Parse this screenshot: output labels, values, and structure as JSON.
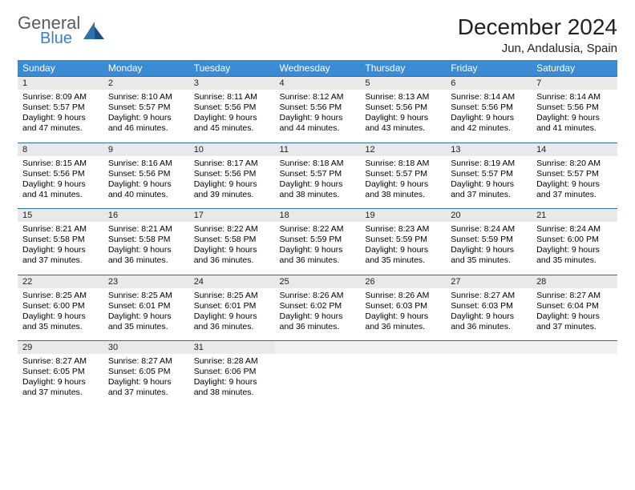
{
  "brand": {
    "word1": "General",
    "word2": "Blue"
  },
  "title": "December 2024",
  "location": "Jun, Andalusia, Spain",
  "colors": {
    "header_bg": "#3b8bd4",
    "header_text": "#ffffff",
    "daynum_bg": "#e9e9e9",
    "row_border": "#2f6fa8",
    "logo_gray": "#5a5a5a",
    "logo_blue": "#3b7fc4"
  },
  "day_labels": [
    "Sunday",
    "Monday",
    "Tuesday",
    "Wednesday",
    "Thursday",
    "Friday",
    "Saturday"
  ],
  "weeks": [
    [
      {
        "n": "1",
        "sr": "8:09 AM",
        "ss": "5:57 PM",
        "dl": "9 hours and 47 minutes."
      },
      {
        "n": "2",
        "sr": "8:10 AM",
        "ss": "5:57 PM",
        "dl": "9 hours and 46 minutes."
      },
      {
        "n": "3",
        "sr": "8:11 AM",
        "ss": "5:56 PM",
        "dl": "9 hours and 45 minutes."
      },
      {
        "n": "4",
        "sr": "8:12 AM",
        "ss": "5:56 PM",
        "dl": "9 hours and 44 minutes."
      },
      {
        "n": "5",
        "sr": "8:13 AM",
        "ss": "5:56 PM",
        "dl": "9 hours and 43 minutes."
      },
      {
        "n": "6",
        "sr": "8:14 AM",
        "ss": "5:56 PM",
        "dl": "9 hours and 42 minutes."
      },
      {
        "n": "7",
        "sr": "8:14 AM",
        "ss": "5:56 PM",
        "dl": "9 hours and 41 minutes."
      }
    ],
    [
      {
        "n": "8",
        "sr": "8:15 AM",
        "ss": "5:56 PM",
        "dl": "9 hours and 41 minutes."
      },
      {
        "n": "9",
        "sr": "8:16 AM",
        "ss": "5:56 PM",
        "dl": "9 hours and 40 minutes."
      },
      {
        "n": "10",
        "sr": "8:17 AM",
        "ss": "5:56 PM",
        "dl": "9 hours and 39 minutes."
      },
      {
        "n": "11",
        "sr": "8:18 AM",
        "ss": "5:57 PM",
        "dl": "9 hours and 38 minutes."
      },
      {
        "n": "12",
        "sr": "8:18 AM",
        "ss": "5:57 PM",
        "dl": "9 hours and 38 minutes."
      },
      {
        "n": "13",
        "sr": "8:19 AM",
        "ss": "5:57 PM",
        "dl": "9 hours and 37 minutes."
      },
      {
        "n": "14",
        "sr": "8:20 AM",
        "ss": "5:57 PM",
        "dl": "9 hours and 37 minutes."
      }
    ],
    [
      {
        "n": "15",
        "sr": "8:21 AM",
        "ss": "5:58 PM",
        "dl": "9 hours and 37 minutes."
      },
      {
        "n": "16",
        "sr": "8:21 AM",
        "ss": "5:58 PM",
        "dl": "9 hours and 36 minutes."
      },
      {
        "n": "17",
        "sr": "8:22 AM",
        "ss": "5:58 PM",
        "dl": "9 hours and 36 minutes."
      },
      {
        "n": "18",
        "sr": "8:22 AM",
        "ss": "5:59 PM",
        "dl": "9 hours and 36 minutes."
      },
      {
        "n": "19",
        "sr": "8:23 AM",
        "ss": "5:59 PM",
        "dl": "9 hours and 35 minutes."
      },
      {
        "n": "20",
        "sr": "8:24 AM",
        "ss": "5:59 PM",
        "dl": "9 hours and 35 minutes."
      },
      {
        "n": "21",
        "sr": "8:24 AM",
        "ss": "6:00 PM",
        "dl": "9 hours and 35 minutes."
      }
    ],
    [
      {
        "n": "22",
        "sr": "8:25 AM",
        "ss": "6:00 PM",
        "dl": "9 hours and 35 minutes."
      },
      {
        "n": "23",
        "sr": "8:25 AM",
        "ss": "6:01 PM",
        "dl": "9 hours and 35 minutes."
      },
      {
        "n": "24",
        "sr": "8:25 AM",
        "ss": "6:01 PM",
        "dl": "9 hours and 36 minutes."
      },
      {
        "n": "25",
        "sr": "8:26 AM",
        "ss": "6:02 PM",
        "dl": "9 hours and 36 minutes."
      },
      {
        "n": "26",
        "sr": "8:26 AM",
        "ss": "6:03 PM",
        "dl": "9 hours and 36 minutes."
      },
      {
        "n": "27",
        "sr": "8:27 AM",
        "ss": "6:03 PM",
        "dl": "9 hours and 36 minutes."
      },
      {
        "n": "28",
        "sr": "8:27 AM",
        "ss": "6:04 PM",
        "dl": "9 hours and 37 minutes."
      }
    ],
    [
      {
        "n": "29",
        "sr": "8:27 AM",
        "ss": "6:05 PM",
        "dl": "9 hours and 37 minutes."
      },
      {
        "n": "30",
        "sr": "8:27 AM",
        "ss": "6:05 PM",
        "dl": "9 hours and 37 minutes."
      },
      {
        "n": "31",
        "sr": "8:28 AM",
        "ss": "6:06 PM",
        "dl": "9 hours and 38 minutes."
      },
      null,
      null,
      null,
      null
    ]
  ],
  "labels": {
    "sunrise": "Sunrise:",
    "sunset": "Sunset:",
    "daylight": "Daylight:"
  }
}
